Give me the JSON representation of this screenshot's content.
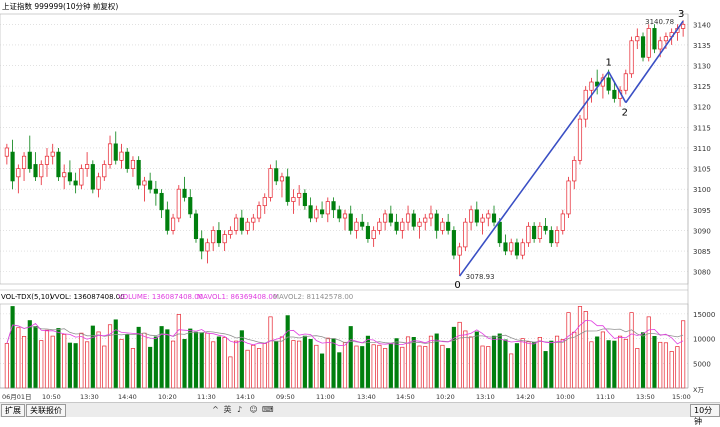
{
  "header": {
    "title": "上证指数 999999(10分钟 前复权)"
  },
  "price_axis": {
    "ticks": [
      3080,
      3085,
      3090,
      3095,
      3100,
      3105,
      3110,
      3115,
      3120,
      3125,
      3130,
      3135,
      3140
    ],
    "min": 3077,
    "max": 3142.5
  },
  "volume_axis": {
    "ticks": [
      "15000",
      "10000",
      "5000"
    ],
    "unit": "X万"
  },
  "time_axis": [
    "06月01日",
    "10:50",
    "13:30",
    "14:40",
    "10:20",
    "11:30",
    "14:10",
    "09:50",
    "11:00",
    "13:40",
    "14:50",
    "10:20",
    "13:10",
    "14:20",
    "10:00",
    "11:10",
    "13:50",
    "15:00"
  ],
  "indicator": {
    "name": "VOL-TDX(5,10)",
    "vvol": "VVOL: 136087408.00",
    "volume": "VOLUME: 136087408.00",
    "mavol1": "MAVOL1: 86369408.00",
    "mavol2": "MAVOL2: 81142578.00"
  },
  "annotations": {
    "low_price": "3078.93",
    "high_price": "3140.78",
    "wave_labels": [
      "0",
      "1",
      "2",
      "3"
    ]
  },
  "status_bar": {
    "tab1": "扩展",
    "tab2": "关联报价",
    "sep": "^",
    "icons": [
      "英",
      "♪",
      "☺",
      "⌨"
    ],
    "period": "10分钟"
  },
  "colors": {
    "up": "#e6232e",
    "down": "#007f0e",
    "wave": "#3a4fc4",
    "grid": "#cfcfcf",
    "ma1": "#e03ee0",
    "ma2": "#909090"
  },
  "chart_data": {
    "type": "candlestick",
    "price_candles": [
      [
        3108,
        3111,
        3106,
        3110
      ],
      [
        3109,
        3112,
        3100,
        3102
      ],
      [
        3103,
        3106,
        3099,
        3105
      ],
      [
        3105,
        3109,
        3102,
        3108
      ],
      [
        3109,
        3113,
        3104,
        3105
      ],
      [
        3106,
        3109,
        3102,
        3103
      ],
      [
        3103,
        3107,
        3101,
        3106
      ],
      [
        3106,
        3110,
        3103,
        3108
      ],
      [
        3108,
        3111,
        3106,
        3109
      ],
      [
        3109,
        3110,
        3102,
        3103
      ],
      [
        3103,
        3106,
        3100,
        3104
      ],
      [
        3104,
        3107,
        3101,
        3102
      ],
      [
        3102,
        3104,
        3099,
        3101
      ],
      [
        3101,
        3106,
        3100,
        3105
      ],
      [
        3105,
        3109,
        3103,
        3106
      ],
      [
        3106,
        3107,
        3099,
        3100
      ],
      [
        3100,
        3104,
        3098,
        3103
      ],
      [
        3103,
        3107,
        3102,
        3106
      ],
      [
        3106,
        3113,
        3105,
        3111
      ],
      [
        3111,
        3114,
        3106,
        3107
      ],
      [
        3107,
        3111,
        3105,
        3109
      ],
      [
        3109,
        3110,
        3104,
        3105
      ],
      [
        3105,
        3108,
        3103,
        3107
      ],
      [
        3107,
        3108,
        3100,
        3101
      ],
      [
        3101,
        3103,
        3097,
        3102
      ],
      [
        3102,
        3104,
        3099,
        3100
      ],
      [
        3100,
        3102,
        3096,
        3099
      ],
      [
        3099,
        3100,
        3093,
        3095
      ],
      [
        3095,
        3097,
        3089,
        3090
      ],
      [
        3090,
        3094,
        3089,
        3093
      ],
      [
        3093,
        3101,
        3092,
        3100
      ],
      [
        3100,
        3103,
        3097,
        3098
      ],
      [
        3098,
        3100,
        3093,
        3094
      ],
      [
        3094,
        3095,
        3087,
        3088
      ],
      [
        3088,
        3090,
        3083,
        3085
      ],
      [
        3085,
        3088,
        3082,
        3087
      ],
      [
        3087,
        3091,
        3085,
        3090
      ],
      [
        3090,
        3092,
        3086,
        3087
      ],
      [
        3087,
        3090,
        3085,
        3089
      ],
      [
        3089,
        3091,
        3088,
        3090
      ],
      [
        3090,
        3094,
        3089,
        3093
      ],
      [
        3093,
        3095,
        3089,
        3090
      ],
      [
        3090,
        3093,
        3089,
        3092
      ],
      [
        3092,
        3094,
        3090,
        3093
      ],
      [
        3093,
        3097,
        3092,
        3096
      ],
      [
        3096,
        3099,
        3094,
        3098
      ],
      [
        3098,
        3106,
        3097,
        3105
      ],
      [
        3105,
        3107,
        3101,
        3102
      ],
      [
        3102,
        3104,
        3098,
        3103
      ],
      [
        3103,
        3105,
        3096,
        3097
      ],
      [
        3097,
        3100,
        3094,
        3098
      ],
      [
        3098,
        3101,
        3096,
        3099
      ],
      [
        3099,
        3100,
        3095,
        3096
      ],
      [
        3096,
        3098,
        3092,
        3093
      ],
      [
        3093,
        3096,
        3092,
        3095
      ],
      [
        3095,
        3097,
        3093,
        3094
      ],
      [
        3094,
        3098,
        3092,
        3097
      ],
      [
        3097,
        3098,
        3093,
        3095
      ],
      [
        3095,
        3096,
        3092,
        3093
      ],
      [
        3093,
        3095,
        3090,
        3094
      ],
      [
        3094,
        3096,
        3089,
        3090
      ],
      [
        3090,
        3093,
        3088,
        3092
      ],
      [
        3092,
        3094,
        3090,
        3091
      ],
      [
        3091,
        3092,
        3087,
        3088
      ],
      [
        3088,
        3091,
        3086,
        3090
      ],
      [
        3090,
        3093,
        3089,
        3092
      ],
      [
        3092,
        3095,
        3090,
        3094
      ],
      [
        3094,
        3096,
        3091,
        3092
      ],
      [
        3092,
        3094,
        3089,
        3090
      ],
      [
        3090,
        3093,
        3088,
        3092
      ],
      [
        3092,
        3096,
        3090,
        3094
      ],
      [
        3094,
        3095,
        3090,
        3091
      ],
      [
        3091,
        3093,
        3088,
        3092
      ],
      [
        3092,
        3094,
        3090,
        3093
      ],
      [
        3093,
        3096,
        3091,
        3094
      ],
      [
        3094,
        3095,
        3088,
        3090
      ],
      [
        3090,
        3093,
        3089,
        3092
      ],
      [
        3092,
        3094,
        3089,
        3090
      ],
      [
        3090,
        3091,
        3083,
        3084
      ],
      [
        3084,
        3087,
        3079,
        3086
      ],
      [
        3086,
        3093,
        3085,
        3092
      ],
      [
        3092,
        3096,
        3090,
        3095
      ],
      [
        3095,
        3097,
        3091,
        3092
      ],
      [
        3092,
        3094,
        3089,
        3093
      ],
      [
        3093,
        3095,
        3091,
        3094
      ],
      [
        3094,
        3096,
        3091,
        3092
      ],
      [
        3092,
        3093,
        3086,
        3087
      ],
      [
        3087,
        3089,
        3084,
        3085
      ],
      [
        3085,
        3088,
        3084,
        3087
      ],
      [
        3087,
        3088,
        3083,
        3084
      ],
      [
        3084,
        3088,
        3083,
        3087
      ],
      [
        3087,
        3092,
        3086,
        3091
      ],
      [
        3091,
        3092,
        3087,
        3088
      ],
      [
        3088,
        3092,
        3087,
        3091
      ],
      [
        3091,
        3093,
        3089,
        3090
      ],
      [
        3090,
        3091,
        3086,
        3087
      ],
      [
        3087,
        3091,
        3086,
        3090
      ],
      [
        3090,
        3095,
        3089,
        3094
      ],
      [
        3094,
        3103,
        3093,
        3102
      ],
      [
        3102,
        3108,
        3100,
        3107
      ],
      [
        3107,
        3118,
        3106,
        3117
      ],
      [
        3117,
        3125,
        3115,
        3124
      ],
      [
        3124,
        3127,
        3121,
        3126
      ],
      [
        3126,
        3129,
        3123,
        3125
      ],
      [
        3125,
        3128,
        3122,
        3127
      ],
      [
        3127,
        3129,
        3123,
        3124
      ],
      [
        3124,
        3126,
        3121,
        3122
      ],
      [
        3122,
        3125,
        3120,
        3124
      ],
      [
        3124,
        3129,
        3123,
        3128
      ],
      [
        3128,
        3137,
        3127,
        3136
      ],
      [
        3136,
        3139,
        3134,
        3137
      ],
      [
        3137,
        3138,
        3131,
        3132
      ],
      [
        3132,
        3140,
        3131,
        3139
      ],
      [
        3139,
        3140,
        3133,
        3134
      ],
      [
        3134,
        3137,
        3132,
        3136
      ],
      [
        3136,
        3138,
        3134,
        3137
      ],
      [
        3137,
        3139,
        3135,
        3138
      ],
      [
        3138,
        3140,
        3136,
        3139
      ],
      [
        3139,
        3141,
        3137,
        3140
      ]
    ],
    "volumes": [],
    "ma_volume_1": [],
    "ma_volume_2": [],
    "wave_points": [
      {
        "label": "0",
        "price": 3078.93
      },
      {
        "label": "1",
        "price": 3128.5
      },
      {
        "label": "2",
        "price": 3121.0
      },
      {
        "label": "3",
        "price": 3140.78
      }
    ]
  }
}
